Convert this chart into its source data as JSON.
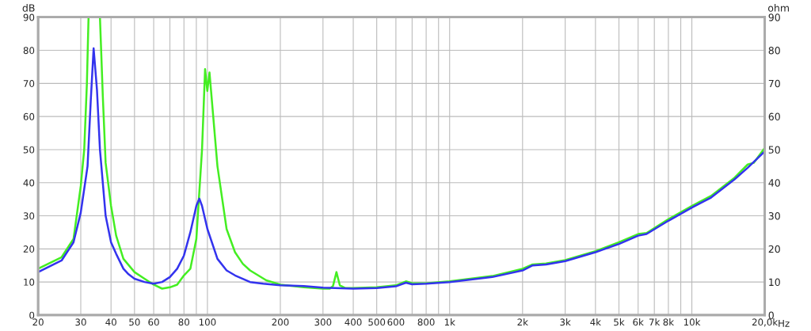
{
  "chart_data": {
    "type": "line",
    "ylabel": "dB",
    "y2label": "ohm",
    "log": "x",
    "grid": true,
    "xlim": [
      20,
      20000
    ],
    "xticks": [
      20,
      30,
      40,
      50,
      60,
      {
        "value": 70,
        "label": null
      },
      80,
      {
        "value": 90,
        "label": null
      },
      100,
      200,
      300,
      400,
      500,
      600,
      {
        "value": 700,
        "label": null
      },
      800,
      {
        "value": 900,
        "label": null
      },
      {
        "value": 1000,
        "label": "1k"
      },
      {
        "value": 2000,
        "label": "2k"
      },
      {
        "value": 3000,
        "label": "3k"
      },
      {
        "value": 4000,
        "label": "4k"
      },
      {
        "value": 5000,
        "label": "5k"
      },
      {
        "value": 6000,
        "label": "6k"
      },
      {
        "value": 7000,
        "label": "7k"
      },
      {
        "value": 8000,
        "label": "8k"
      },
      {
        "value": 9000,
        "label": null
      },
      {
        "value": 10000,
        "label": "10k"
      },
      {
        "value": 20000,
        "label": "20,0k"
      }
    ],
    "xlabel": "Hz",
    "ylim": [
      0,
      90
    ],
    "yticks": [
      0,
      10,
      20,
      30,
      40,
      50,
      60,
      70,
      80,
      90
    ],
    "y2lim": [
      0,
      90
    ],
    "y2ticks": [
      0,
      10,
      20,
      30,
      40,
      50,
      60,
      70,
      80,
      90
    ],
    "series": [
      {
        "color": "#44ee22",
        "x": [
          20,
          25,
          28,
          30,
          31,
          31.8,
          32.3,
          34,
          36,
          37,
          38,
          40,
          42,
          45,
          50,
          55,
          60,
          65,
          70,
          75,
          80,
          85,
          90,
          95,
          97.8,
          99.9,
          102,
          110,
          120,
          130,
          140,
          150,
          175,
          200,
          250,
          300,
          320,
          330,
          341,
          352,
          370,
          400,
          500,
          600,
          660,
          700,
          800,
          1000,
          1500,
          2000,
          2200,
          2500,
          3000,
          4000,
          5000,
          6000,
          6500,
          8000,
          10000,
          12000,
          15000,
          17000,
          18000,
          20000
        ],
        "values": [
          14,
          17.5,
          23,
          39,
          50,
          70,
          90,
          null,
          90,
          66,
          46,
          33,
          24,
          17,
          13,
          11,
          9.2,
          8,
          8.4,
          9.2,
          12,
          14,
          23,
          50,
          74.3,
          67.7,
          73.3,
          45,
          26,
          19,
          15.5,
          13.5,
          10.5,
          9.2,
          8.4,
          8,
          8,
          8.8,
          13,
          9,
          8.2,
          8.2,
          8.4,
          9,
          10.2,
          9.6,
          9.6,
          10.2,
          11.8,
          14,
          15.3,
          15.6,
          16.6,
          19.3,
          22,
          24.5,
          24.8,
          29,
          33,
          36,
          41.5,
          45.5,
          46,
          50.5
        ]
      },
      {
        "color": "#3333ee",
        "x": [
          20,
          25,
          28,
          30,
          32,
          33,
          33.9,
          35,
          36,
          38,
          40,
          42,
          45,
          47,
          50,
          55,
          60,
          65,
          70,
          75,
          80,
          85,
          90,
          92.6,
          95,
          100,
          110,
          120,
          130,
          150,
          170,
          200,
          250,
          300,
          400,
          500,
          600,
          660,
          700,
          800,
          1000,
          1500,
          2000,
          2200,
          2500,
          3000,
          4000,
          5000,
          6000,
          6500,
          8000,
          10000,
          12000,
          15000,
          17000,
          20000
        ],
        "values": [
          13,
          16.5,
          22,
          31,
          45,
          65,
          80.6,
          68,
          50,
          30,
          22,
          18.5,
          14,
          12.5,
          11,
          10,
          9.5,
          10,
          11.5,
          14,
          18,
          25,
          33,
          35.2,
          33,
          26,
          17,
          13.5,
          12,
          10,
          9.5,
          9,
          8.8,
          8.3,
          8,
          8.2,
          8.7,
          9.8,
          9.3,
          9.5,
          10,
          11.5,
          13.5,
          15,
          15.3,
          16.3,
          19,
          21.5,
          24,
          24.5,
          28.5,
          32.5,
          35.5,
          41,
          44.5,
          49.5
        ]
      }
    ]
  }
}
